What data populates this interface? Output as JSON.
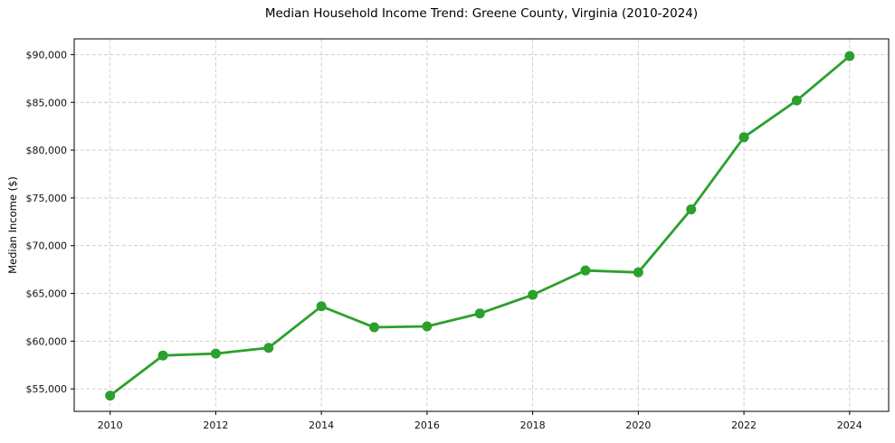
{
  "chart_data": {
    "type": "line",
    "title": "Median Household Income Trend: Greene County, Virginia (2010-2024)",
    "xlabel": "",
    "ylabel": "Median Income ($)",
    "x": [
      2010,
      2011,
      2012,
      2013,
      2014,
      2015,
      2016,
      2017,
      2018,
      2019,
      2020,
      2021,
      2022,
      2023,
      2024
    ],
    "values": [
      54300,
      58500,
      58700,
      59300,
      63650,
      61450,
      61550,
      62900,
      64850,
      67400,
      67200,
      73800,
      81350,
      85200,
      89850
    ],
    "x_ticks": [
      2010,
      2012,
      2014,
      2016,
      2018,
      2020,
      2022,
      2024
    ],
    "x_tick_labels": [
      "2010",
      "2012",
      "2014",
      "2016",
      "2018",
      "2020",
      "2022",
      "2024"
    ],
    "y_ticks": [
      55000,
      60000,
      65000,
      70000,
      75000,
      80000,
      85000,
      90000
    ],
    "y_tick_labels": [
      "$55,000",
      "$60,000",
      "$65,000",
      "$70,000",
      "$75,000",
      "$80,000",
      "$85,000",
      "$90,000"
    ],
    "xlim": [
      2009.32,
      2024.74
    ],
    "ylim": [
      52650,
      91650
    ],
    "grid": true,
    "grid_style": "dashed",
    "legend": false,
    "marker": "circle",
    "line_color": "#2ca02c",
    "grid_color": "#c9c9c9",
    "axis_color": "#000000",
    "tick_label_color": "#111111",
    "background": "#ffffff"
  }
}
